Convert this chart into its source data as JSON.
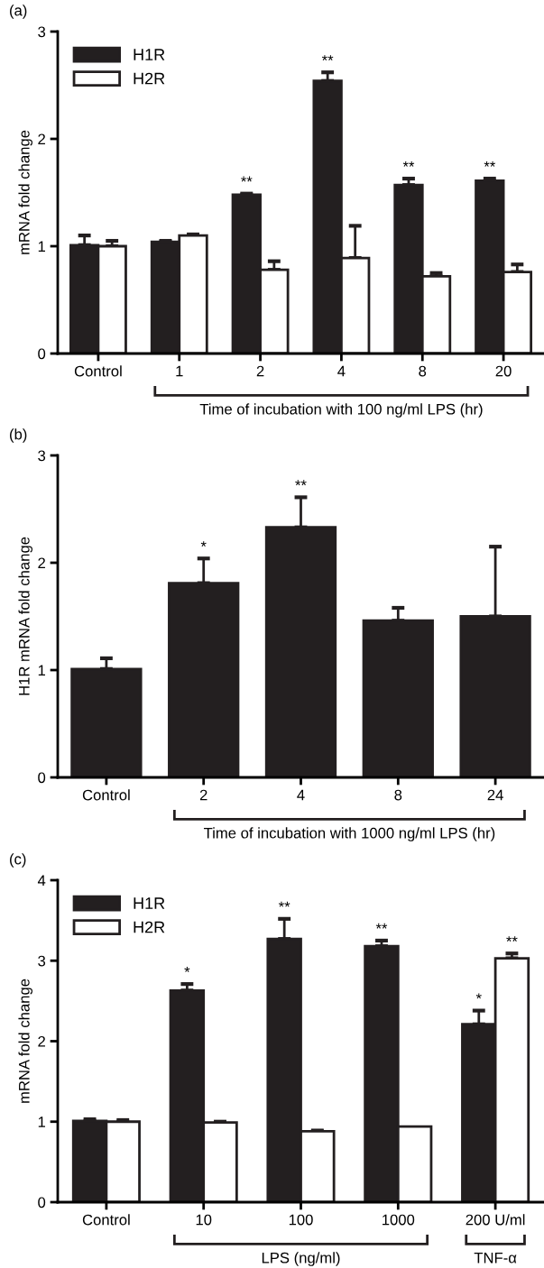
{
  "chart_data": [
    {
      "type": "bar",
      "title": "(a)",
      "ylabel": "mRNA fold change",
      "xlabel": "Time of incubation with 100 ng/ml LPS (hr)",
      "categories": [
        "Control",
        "1",
        "2",
        "4",
        "8",
        "20"
      ],
      "series": [
        {
          "name": "H1R",
          "color": "#231f20",
          "values": [
            1.01,
            1.04,
            1.48,
            2.54,
            1.57,
            1.61
          ],
          "errors": [
            [
              1.01,
              1.1
            ],
            [
              1.04,
              1.05
            ],
            [
              1.48,
              1.49
            ],
            [
              2.54,
              2.62
            ],
            [
              1.57,
              1.63
            ],
            [
              1.61,
              1.63
            ]
          ]
        },
        {
          "name": "H2R",
          "color": "#ffffff",
          "values": [
            1.0,
            1.1,
            0.78,
            0.89,
            0.72,
            0.76
          ],
          "errors": [
            [
              1.0,
              1.05
            ],
            [
              1.1,
              1.11
            ],
            [
              0.78,
              0.86
            ],
            [
              0.89,
              1.19
            ],
            [
              0.72,
              0.75
            ],
            [
              0.76,
              0.83
            ]
          ]
        }
      ],
      "annotations": [
        "**",
        "**",
        "**",
        "**"
      ],
      "ylim": [
        0,
        3
      ],
      "yticks": [
        0,
        1,
        2,
        3
      ],
      "legend": "top left",
      "grid": false
    },
    {
      "type": "bar",
      "title": "(b)",
      "ylabel": "H1R mRNA fold change",
      "xlabel": "Time of incubation with 1000 ng/ml LPS (hr)",
      "categories": [
        "Control",
        "2",
        "4",
        "8",
        "24"
      ],
      "series": [
        {
          "color": "#231f20",
          "values": [
            1.01,
            1.81,
            2.33,
            1.46,
            1.5
          ],
          "errors": [
            [
              1.01,
              1.11
            ],
            [
              1.81,
              2.04
            ],
            [
              2.33,
              2.61
            ],
            [
              1.46,
              1.58
            ],
            [
              1.5,
              2.15
            ]
          ]
        }
      ],
      "annotations": [
        "*",
        "**"
      ],
      "ylim": [
        0,
        3
      ],
      "yticks": [
        0,
        1,
        2,
        3
      ],
      "legend": false,
      "grid": false
    },
    {
      "type": "bar",
      "title": "(c)",
      "ylabel": "mRNA fold change",
      "categories": [
        "Control",
        "10",
        "100",
        "1000",
        "200 U/ml"
      ],
      "series": [
        {
          "name": "H1R",
          "color": "#231f20",
          "values": [
            1.01,
            2.63,
            3.27,
            3.18,
            2.21
          ],
          "errors": [
            [
              1.01,
              1.03
            ],
            [
              2.63,
              2.71
            ],
            [
              3.27,
              3.52
            ],
            [
              3.18,
              3.25
            ],
            [
              2.21,
              2.38
            ]
          ]
        },
        {
          "name": "H2R",
          "color": "#ffffff",
          "values": [
            1.0,
            0.99,
            0.88,
            0.94,
            3.03
          ],
          "errors": [
            [
              1.0,
              1.02
            ],
            [
              0.99,
              1.0
            ],
            [
              0.88,
              0.89
            ],
            null,
            [
              3.03,
              3.09
            ]
          ]
        }
      ],
      "annotations": [
        "*",
        "**",
        "**",
        "*",
        "**",
        "LPS (ng/ml)",
        "TNF-α"
      ],
      "ylim": [
        0,
        4
      ],
      "yticks": [
        0,
        1,
        2,
        3,
        4
      ],
      "legend": "top left",
      "grid": false
    }
  ]
}
